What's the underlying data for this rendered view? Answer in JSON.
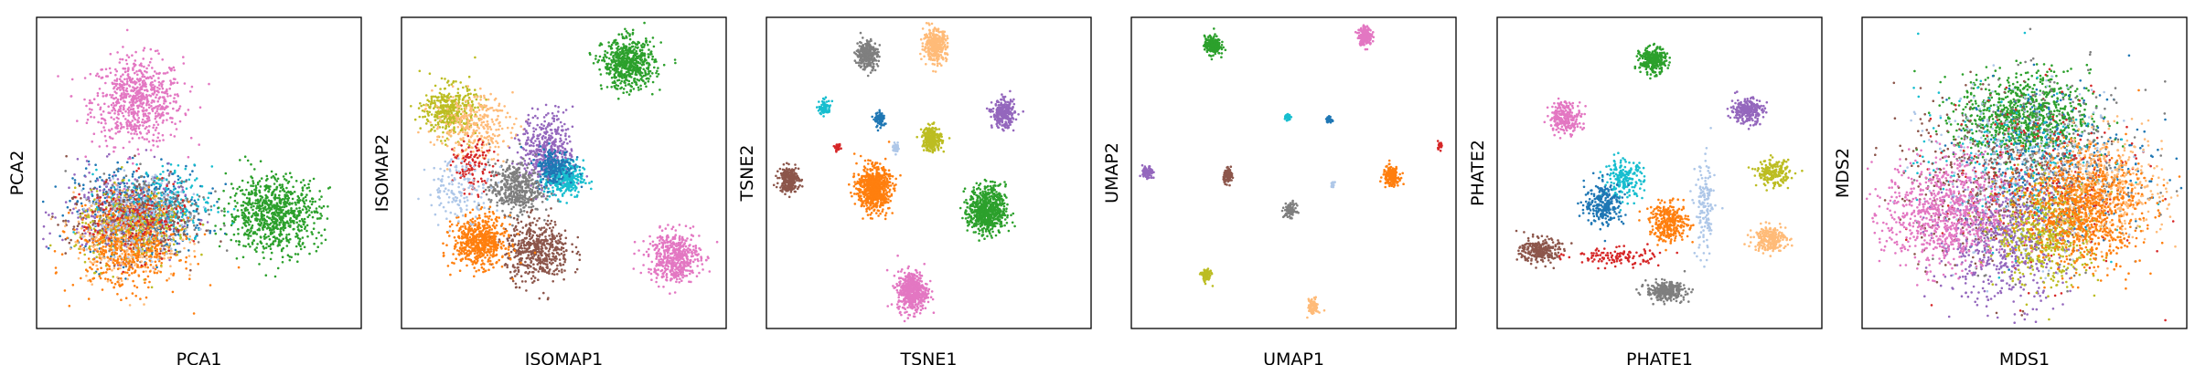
{
  "palette": {
    "blue": "#1f77b4",
    "orange": "#ff7f0e",
    "green": "#2ca02c",
    "red": "#d62728",
    "purple": "#9467bd",
    "brown": "#8c564b",
    "pink": "#e377c2",
    "gray": "#7f7f7f",
    "olive": "#bcbd22",
    "cyan": "#17becf",
    "lightblue": "#aec7e8",
    "peach": "#ffbb78"
  },
  "chart_data": [
    {
      "type": "scatter",
      "xlabel": "PCA1",
      "ylabel": "PCA2",
      "xlim": [
        0,
        100
      ],
      "ylim": [
        0,
        100
      ],
      "clusters": [
        {
          "color": "pink",
          "cx": 31,
          "cy": 73,
          "sx": 7,
          "sy": 7,
          "n": 700
        },
        {
          "color": "blue",
          "cx": 32,
          "cy": 38,
          "sx": 10,
          "sy": 7,
          "n": 450
        },
        {
          "color": "purple",
          "cx": 26,
          "cy": 37,
          "sx": 9,
          "sy": 7,
          "n": 350
        },
        {
          "color": "cyan",
          "cx": 38,
          "cy": 40,
          "sx": 8,
          "sy": 6,
          "n": 250
        },
        {
          "color": "gray",
          "cx": 36,
          "cy": 38,
          "sx": 8,
          "sy": 6,
          "n": 250
        },
        {
          "color": "brown",
          "cx": 27,
          "cy": 34,
          "sx": 9,
          "sy": 6,
          "n": 300
        },
        {
          "color": "peach",
          "cx": 28,
          "cy": 29,
          "sx": 8,
          "sy": 7,
          "n": 350
        },
        {
          "color": "olive",
          "cx": 30,
          "cy": 32,
          "sx": 9,
          "sy": 6,
          "n": 250
        },
        {
          "color": "orange",
          "cx": 28,
          "cy": 26,
          "sx": 8,
          "sy": 7,
          "n": 450
        },
        {
          "color": "red",
          "cx": 30,
          "cy": 35,
          "sx": 8,
          "sy": 6,
          "n": 150
        },
        {
          "color": "lightblue",
          "cx": 31,
          "cy": 36,
          "sx": 8,
          "sy": 6,
          "n": 150
        },
        {
          "color": "green",
          "cx": 73,
          "cy": 37,
          "sx": 7,
          "sy": 6,
          "n": 800
        }
      ]
    },
    {
      "type": "scatter",
      "xlabel": "ISOMAP1",
      "ylabel": "ISOMAP2",
      "xlim": [
        0,
        100
      ],
      "ylim": [
        0,
        100
      ],
      "clusters": [
        {
          "color": "green",
          "cx": 70,
          "cy": 85,
          "sx": 4,
          "sy": 4,
          "n": 600
        },
        {
          "color": "pink",
          "cx": 84,
          "cy": 23,
          "sx": 4,
          "sy": 4,
          "n": 500
        },
        {
          "color": "olive",
          "cx": 15,
          "cy": 70,
          "sx": 4,
          "sy": 4,
          "n": 400
        },
        {
          "color": "peach",
          "cx": 22,
          "cy": 65,
          "sx": 6,
          "sy": 5,
          "n": 300
        },
        {
          "color": "purple",
          "cx": 45,
          "cy": 57,
          "sx": 4,
          "sy": 6,
          "n": 450
        },
        {
          "color": "cyan",
          "cx": 50,
          "cy": 48,
          "sx": 3,
          "sy": 3,
          "n": 300
        },
        {
          "color": "blue",
          "cx": 47,
          "cy": 52,
          "sx": 3,
          "sy": 3,
          "n": 200
        },
        {
          "color": "gray",
          "cx": 35,
          "cy": 45,
          "sx": 4,
          "sy": 4,
          "n": 450
        },
        {
          "color": "brown",
          "cx": 42,
          "cy": 25,
          "sx": 5,
          "sy": 5,
          "n": 500
        },
        {
          "color": "orange",
          "cx": 24,
          "cy": 28,
          "sx": 4,
          "sy": 4,
          "n": 600
        },
        {
          "color": "red",
          "cx": 22,
          "cy": 52,
          "sx": 3,
          "sy": 4,
          "n": 120
        },
        {
          "color": "lightblue",
          "cx": 18,
          "cy": 45,
          "sx": 5,
          "sy": 5,
          "n": 150
        }
      ]
    },
    {
      "type": "scatter",
      "xlabel": "TSNE1",
      "ylabel": "TSNE2",
      "xlim": [
        0,
        100
      ],
      "ylim": [
        0,
        100
      ],
      "clusters": [
        {
          "color": "gray",
          "cx": 31,
          "cy": 88,
          "sx": 1.6,
          "sy": 2.3,
          "n": 300
        },
        {
          "color": "peach",
          "cx": 52,
          "cy": 91,
          "sx": 1.8,
          "sy": 2.5,
          "n": 350
        },
        {
          "color": "cyan",
          "cx": 18,
          "cy": 71,
          "sx": 0.9,
          "sy": 1.2,
          "n": 80
        },
        {
          "color": "blue",
          "cx": 35,
          "cy": 67,
          "sx": 0.8,
          "sy": 1.2,
          "n": 80
        },
        {
          "color": "purple",
          "cx": 73,
          "cy": 69,
          "sx": 1.7,
          "sy": 2.2,
          "n": 300
        },
        {
          "color": "olive",
          "cx": 51,
          "cy": 61,
          "sx": 1.5,
          "sy": 2.0,
          "n": 250
        },
        {
          "color": "red",
          "cx": 22,
          "cy": 58,
          "sx": 0.4,
          "sy": 0.5,
          "n": 30
        },
        {
          "color": "lightblue",
          "cx": 40,
          "cy": 58,
          "sx": 0.5,
          "sy": 0.7,
          "n": 40
        },
        {
          "color": "brown",
          "cx": 7,
          "cy": 48,
          "sx": 1.5,
          "sy": 2.0,
          "n": 250
        },
        {
          "color": "orange",
          "cx": 33,
          "cy": 45,
          "sx": 2.5,
          "sy": 3.5,
          "n": 700
        },
        {
          "color": "green",
          "cx": 68,
          "cy": 38,
          "sx": 2.8,
          "sy": 3.8,
          "n": 700
        },
        {
          "color": "pink",
          "cx": 45,
          "cy": 12,
          "sx": 2.3,
          "sy": 3.2,
          "n": 500
        }
      ]
    },
    {
      "type": "scatter",
      "xlabel": "UMAP1",
      "ylabel": "UMAP2",
      "xlim": [
        0,
        100
      ],
      "ylim": [
        0,
        100
      ],
      "clusters": [
        {
          "color": "green",
          "cx": 25,
          "cy": 91,
          "sx": 1.2,
          "sy": 1.5,
          "n": 250
        },
        {
          "color": "pink",
          "cx": 72,
          "cy": 94,
          "sx": 1.0,
          "sy": 1.4,
          "n": 200
        },
        {
          "color": "cyan",
          "cx": 48,
          "cy": 68,
          "sx": 0.5,
          "sy": 0.6,
          "n": 40
        },
        {
          "color": "blue",
          "cx": 61,
          "cy": 67,
          "sx": 0.4,
          "sy": 0.6,
          "n": 40
        },
        {
          "color": "red",
          "cx": 95,
          "cy": 59,
          "sx": 0.4,
          "sy": 0.6,
          "n": 25
        },
        {
          "color": "purple",
          "cx": 5,
          "cy": 50,
          "sx": 0.8,
          "sy": 1.1,
          "n": 80
        },
        {
          "color": "brown",
          "cx": 30,
          "cy": 49,
          "sx": 0.8,
          "sy": 1.1,
          "n": 80
        },
        {
          "color": "orange",
          "cx": 80,
          "cy": 49,
          "sx": 1.2,
          "sy": 1.5,
          "n": 200
        },
        {
          "color": "lightblue",
          "cx": 62,
          "cy": 46,
          "sx": 0.3,
          "sy": 0.5,
          "n": 15
        },
        {
          "color": "gray",
          "cx": 49,
          "cy": 38,
          "sx": 0.9,
          "sy": 1.1,
          "n": 100
        },
        {
          "color": "olive",
          "cx": 23,
          "cy": 17,
          "sx": 0.8,
          "sy": 1.1,
          "n": 80
        },
        {
          "color": "peach",
          "cx": 56,
          "cy": 7,
          "sx": 0.8,
          "sy": 1.3,
          "n": 80
        }
      ]
    },
    {
      "type": "scatter",
      "xlabel": "PHATE1",
      "ylabel": "PHATE2",
      "xlim": [
        0,
        100
      ],
      "ylim": [
        0,
        100
      ],
      "clusters": [
        {
          "color": "green",
          "cx": 48,
          "cy": 86,
          "sx": 2,
          "sy": 2,
          "n": 300
        },
        {
          "color": "pink",
          "cx": 21,
          "cy": 68,
          "sx": 2.5,
          "sy": 2.5,
          "n": 250
        },
        {
          "color": "purple",
          "cx": 77,
          "cy": 70,
          "sx": 2.5,
          "sy": 2,
          "n": 250
        },
        {
          "color": "cyan",
          "cx": 39,
          "cy": 48,
          "sx": 3,
          "sy": 3,
          "n": 200
        },
        {
          "color": "blue",
          "cx": 33,
          "cy": 40,
          "sx": 3,
          "sy": 3.5,
          "n": 250
        },
        {
          "color": "olive",
          "cx": 85,
          "cy": 50,
          "sx": 2.5,
          "sy": 2,
          "n": 200
        },
        {
          "color": "lightblue",
          "cx": 64,
          "cy": 38,
          "sx": 1.5,
          "sy": 8,
          "n": 150
        },
        {
          "color": "orange",
          "cx": 53,
          "cy": 34,
          "sx": 3,
          "sy": 3,
          "n": 300
        },
        {
          "color": "peach",
          "cx": 84,
          "cy": 29,
          "sx": 2.5,
          "sy": 2,
          "n": 250
        },
        {
          "color": "brown",
          "cx": 13,
          "cy": 25,
          "sx": 3,
          "sy": 2,
          "n": 250
        },
        {
          "color": "red",
          "cx": 36,
          "cy": 23,
          "sx": 7,
          "sy": 1.5,
          "n": 120
        },
        {
          "color": "gray",
          "cx": 52,
          "cy": 12,
          "sx": 3,
          "sy": 1.5,
          "n": 300
        }
      ]
    },
    {
      "type": "scatter",
      "xlabel": "MDS1",
      "ylabel": "MDS2",
      "xlim": [
        0,
        100
      ],
      "ylim": [
        0,
        100
      ],
      "clusters": [
        {
          "color": "green",
          "cx": 50,
          "cy": 68,
          "sx": 10,
          "sy": 7,
          "n": 900
        },
        {
          "color": "blue",
          "cx": 60,
          "cy": 55,
          "sx": 14,
          "sy": 12,
          "n": 300
        },
        {
          "color": "cyan",
          "cx": 45,
          "cy": 52,
          "sx": 14,
          "sy": 12,
          "n": 250
        },
        {
          "color": "brown",
          "cx": 40,
          "cy": 48,
          "sx": 15,
          "sy": 14,
          "n": 400
        },
        {
          "color": "gray",
          "cx": 58,
          "cy": 50,
          "sx": 15,
          "sy": 14,
          "n": 400
        },
        {
          "color": "red",
          "cx": 55,
          "cy": 45,
          "sx": 15,
          "sy": 14,
          "n": 300
        },
        {
          "color": "lightblue",
          "cx": 48,
          "cy": 50,
          "sx": 15,
          "sy": 14,
          "n": 300
        },
        {
          "color": "purple",
          "cx": 43,
          "cy": 28,
          "sx": 10,
          "sy": 10,
          "n": 600
        },
        {
          "color": "olive",
          "cx": 57,
          "cy": 30,
          "sx": 8,
          "sy": 8,
          "n": 500
        },
        {
          "color": "peach",
          "cx": 75,
          "cy": 45,
          "sx": 9,
          "sy": 9,
          "n": 500
        },
        {
          "color": "orange",
          "cx": 68,
          "cy": 38,
          "sx": 9,
          "sy": 9,
          "n": 800
        },
        {
          "color": "pink",
          "cx": 25,
          "cy": 37,
          "sx": 9,
          "sy": 9,
          "n": 800
        }
      ]
    }
  ]
}
